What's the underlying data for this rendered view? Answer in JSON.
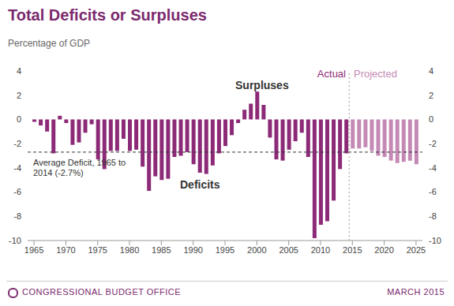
{
  "chart_data": {
    "type": "bar",
    "title": "Total Deficits or Surpluses",
    "subtitle": "Percentage of GDP",
    "x": [
      1965,
      1966,
      1967,
      1968,
      1969,
      1970,
      1971,
      1972,
      1973,
      1974,
      1975,
      1976,
      1977,
      1978,
      1979,
      1980,
      1981,
      1982,
      1983,
      1984,
      1985,
      1986,
      1987,
      1988,
      1989,
      1990,
      1991,
      1992,
      1993,
      1994,
      1995,
      1996,
      1997,
      1998,
      1999,
      2000,
      2001,
      2002,
      2003,
      2004,
      2005,
      2006,
      2007,
      2008,
      2009,
      2010,
      2011,
      2012,
      2013,
      2014,
      2015,
      2016,
      2017,
      2018,
      2019,
      2020,
      2021,
      2022,
      2023,
      2024,
      2025
    ],
    "xlim": [
      1964,
      2026
    ],
    "xticks": [
      1965,
      1970,
      1975,
      1980,
      1985,
      1990,
      1995,
      2000,
      2005,
      2010,
      2015,
      2020,
      2025
    ],
    "ylim": [
      -10,
      4
    ],
    "yticks": [
      -10,
      -8,
      -6,
      -4,
      -2,
      0,
      2,
      4
    ],
    "series": [
      {
        "name": "Actual",
        "color": "#8c2a78",
        "values": [
          -0.2,
          -0.5,
          -1.0,
          -2.8,
          0.3,
          -0.3,
          -2.1,
          -1.9,
          -1.1,
          -0.4,
          -3.3,
          -4.1,
          -2.6,
          -2.6,
          -1.6,
          -2.6,
          -2.5,
          -3.9,
          -5.9,
          -4.7,
          -5.0,
          -4.9,
          -3.1,
          -3.0,
          -2.7,
          -3.7,
          -4.4,
          -4.5,
          -3.8,
          -2.8,
          -2.2,
          -1.3,
          -0.3,
          0.8,
          1.3,
          2.3,
          1.2,
          -1.5,
          -3.3,
          -3.4,
          -2.5,
          -1.8,
          -1.1,
          -3.1,
          -9.8,
          -8.7,
          -8.4,
          -6.7,
          -4.1,
          -2.8,
          null,
          null,
          null,
          null,
          null,
          null,
          null,
          null,
          null,
          null,
          null
        ]
      },
      {
        "name": "Projected",
        "color": "#c48ab5",
        "values": [
          null,
          null,
          null,
          null,
          null,
          null,
          null,
          null,
          null,
          null,
          null,
          null,
          null,
          null,
          null,
          null,
          null,
          null,
          null,
          null,
          null,
          null,
          null,
          null,
          null,
          null,
          null,
          null,
          null,
          null,
          null,
          null,
          null,
          null,
          null,
          null,
          null,
          null,
          null,
          null,
          null,
          null,
          null,
          null,
          null,
          null,
          null,
          null,
          null,
          null,
          -2.4,
          -2.4,
          -2.3,
          -2.6,
          -3.0,
          -3.1,
          -3.4,
          -3.6,
          -3.5,
          -3.4,
          -3.7
        ]
      }
    ],
    "average_deficit": -2.7,
    "average_label": "Average Deficit, 1965 to 2014 (-2.7%)",
    "surplus_label": "Surpluses",
    "deficit_label": "Deficits",
    "source": "CONGRESSIONAL BUDGET OFFICE",
    "date": "MARCH 2015",
    "grid": false
  }
}
